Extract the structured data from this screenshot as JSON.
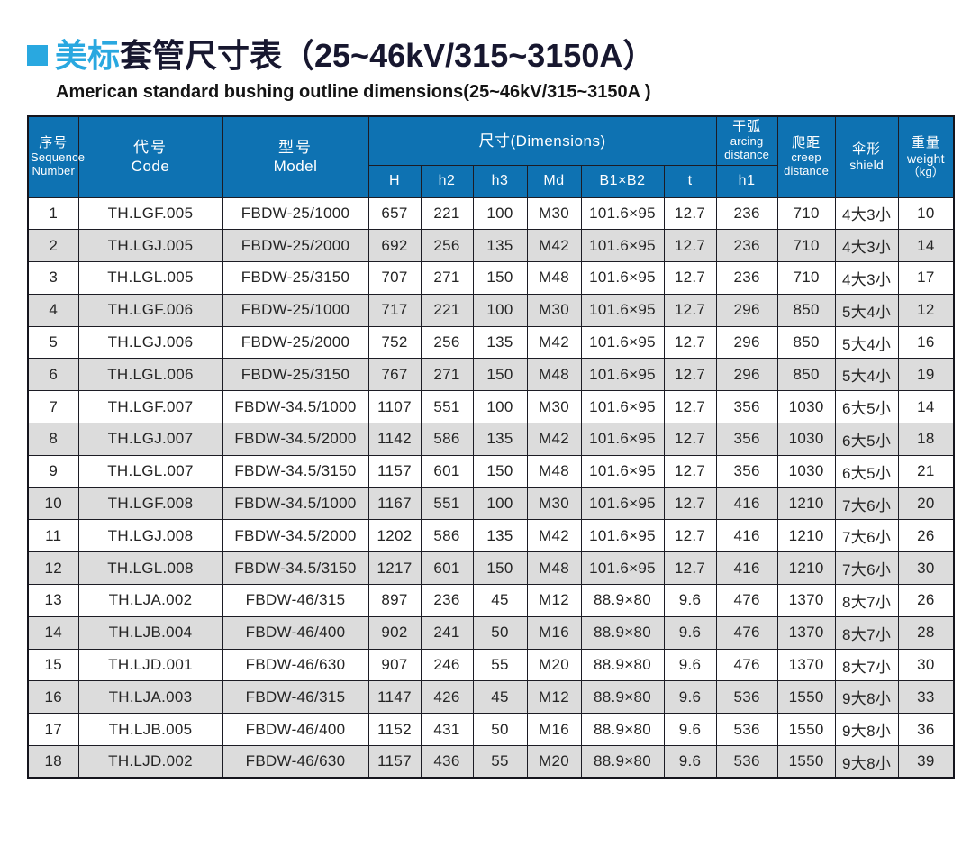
{
  "title": {
    "zh_highlight": "美标",
    "zh_rest": "套管尺寸表（25~46kV/315~3150A）",
    "en": "American standard bushing outline dimensions(25~46kV/315~3150A )"
  },
  "colors": {
    "accent_blue": "#29a8e0",
    "header_blue": "#0e72b2",
    "row_stripe": "#dcdcdc",
    "title_dark": "#17172f"
  },
  "table": {
    "header": {
      "seq": {
        "zh": "序号",
        "en1": "Sequence",
        "en2": "Number"
      },
      "code": {
        "zh": "代号",
        "en": "Code"
      },
      "model": {
        "zh": "型号",
        "en": "Model"
      },
      "dimensions": "尺寸(Dimensions)",
      "sub": [
        "H",
        "h2",
        "h3",
        "Md",
        "B1×B2",
        "t"
      ],
      "arcing": {
        "zh": "干弧",
        "en1": "arcing",
        "en2": "distance",
        "sub": "h1"
      },
      "creep": {
        "zh": "爬距",
        "en1": "creep",
        "en2": "distance"
      },
      "shield": {
        "zh": "伞形",
        "en": "shield"
      },
      "weight": {
        "zh": "重量",
        "en": "weight",
        "unit": "（kg）"
      }
    },
    "rows": [
      [
        "1",
        "TH.LGF.005",
        "FBDW-25/1000",
        "657",
        "221",
        "100",
        "M30",
        "101.6×95",
        "12.7",
        "236",
        "710",
        "4大3小",
        "10"
      ],
      [
        "2",
        "TH.LGJ.005",
        "FBDW-25/2000",
        "692",
        "256",
        "135",
        "M42",
        "101.6×95",
        "12.7",
        "236",
        "710",
        "4大3小",
        "14"
      ],
      [
        "3",
        "TH.LGL.005",
        "FBDW-25/3150",
        "707",
        "271",
        "150",
        "M48",
        "101.6×95",
        "12.7",
        "236",
        "710",
        "4大3小",
        "17"
      ],
      [
        "4",
        "TH.LGF.006",
        "FBDW-25/1000",
        "717",
        "221",
        "100",
        "M30",
        "101.6×95",
        "12.7",
        "296",
        "850",
        "5大4小",
        "12"
      ],
      [
        "5",
        "TH.LGJ.006",
        "FBDW-25/2000",
        "752",
        "256",
        "135",
        "M42",
        "101.6×95",
        "12.7",
        "296",
        "850",
        "5大4小",
        "16"
      ],
      [
        "6",
        "TH.LGL.006",
        "FBDW-25/3150",
        "767",
        "271",
        "150",
        "M48",
        "101.6×95",
        "12.7",
        "296",
        "850",
        "5大4小",
        "19"
      ],
      [
        "7",
        "TH.LGF.007",
        "FBDW-34.5/1000",
        "1107",
        "551",
        "100",
        "M30",
        "101.6×95",
        "12.7",
        "356",
        "1030",
        "6大5小",
        "14"
      ],
      [
        "8",
        "TH.LGJ.007",
        "FBDW-34.5/2000",
        "1142",
        "586",
        "135",
        "M42",
        "101.6×95",
        "12.7",
        "356",
        "1030",
        "6大5小",
        "18"
      ],
      [
        "9",
        "TH.LGL.007",
        "FBDW-34.5/3150",
        "1157",
        "601",
        "150",
        "M48",
        "101.6×95",
        "12.7",
        "356",
        "1030",
        "6大5小",
        "21"
      ],
      [
        "10",
        "TH.LGF.008",
        "FBDW-34.5/1000",
        "1167",
        "551",
        "100",
        "M30",
        "101.6×95",
        "12.7",
        "416",
        "1210",
        "7大6小",
        "20"
      ],
      [
        "11",
        "TH.LGJ.008",
        "FBDW-34.5/2000",
        "1202",
        "586",
        "135",
        "M42",
        "101.6×95",
        "12.7",
        "416",
        "1210",
        "7大6小",
        "26"
      ],
      [
        "12",
        "TH.LGL.008",
        "FBDW-34.5/3150",
        "1217",
        "601",
        "150",
        "M48",
        "101.6×95",
        "12.7",
        "416",
        "1210",
        "7大6小",
        "30"
      ],
      [
        "13",
        "TH.LJA.002",
        "FBDW-46/315",
        "897",
        "236",
        "45",
        "M12",
        "88.9×80",
        "9.6",
        "476",
        "1370",
        "8大7小",
        "26"
      ],
      [
        "14",
        "TH.LJB.004",
        "FBDW-46/400",
        "902",
        "241",
        "50",
        "M16",
        "88.9×80",
        "9.6",
        "476",
        "1370",
        "8大7小",
        "28"
      ],
      [
        "15",
        "TH.LJD.001",
        "FBDW-46/630",
        "907",
        "246",
        "55",
        "M20",
        "88.9×80",
        "9.6",
        "476",
        "1370",
        "8大7小",
        "30"
      ],
      [
        "16",
        "TH.LJA.003",
        "FBDW-46/315",
        "1147",
        "426",
        "45",
        "M12",
        "88.9×80",
        "9.6",
        "536",
        "1550",
        "9大8小",
        "33"
      ],
      [
        "17",
        "TH.LJB.005",
        "FBDW-46/400",
        "1152",
        "431",
        "50",
        "M16",
        "88.9×80",
        "9.6",
        "536",
        "1550",
        "9大8小",
        "36"
      ],
      [
        "18",
        "TH.LJD.002",
        "FBDW-46/630",
        "1157",
        "436",
        "55",
        "M20",
        "88.9×80",
        "9.6",
        "536",
        "1550",
        "9大8小",
        "39"
      ]
    ]
  }
}
